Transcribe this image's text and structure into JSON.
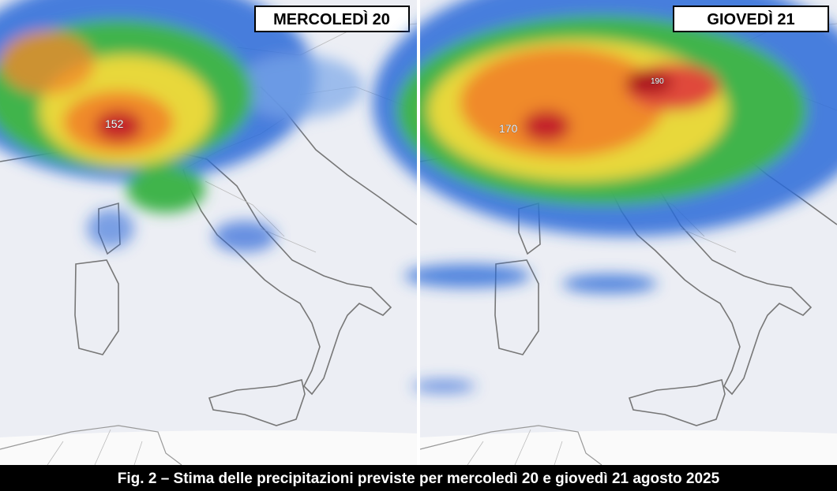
{
  "panels": [
    {
      "label": "MERCOLEDÌ 20",
      "annotations": [
        "152"
      ]
    },
    {
      "label": "GIOVEDÌ 21",
      "annotations": [
        "170",
        "190"
      ]
    }
  ],
  "caption": "Fig. 2 – Stima delle precipitazioni previste per mercoledì 20 e giovedì 21 agosto 2025"
}
